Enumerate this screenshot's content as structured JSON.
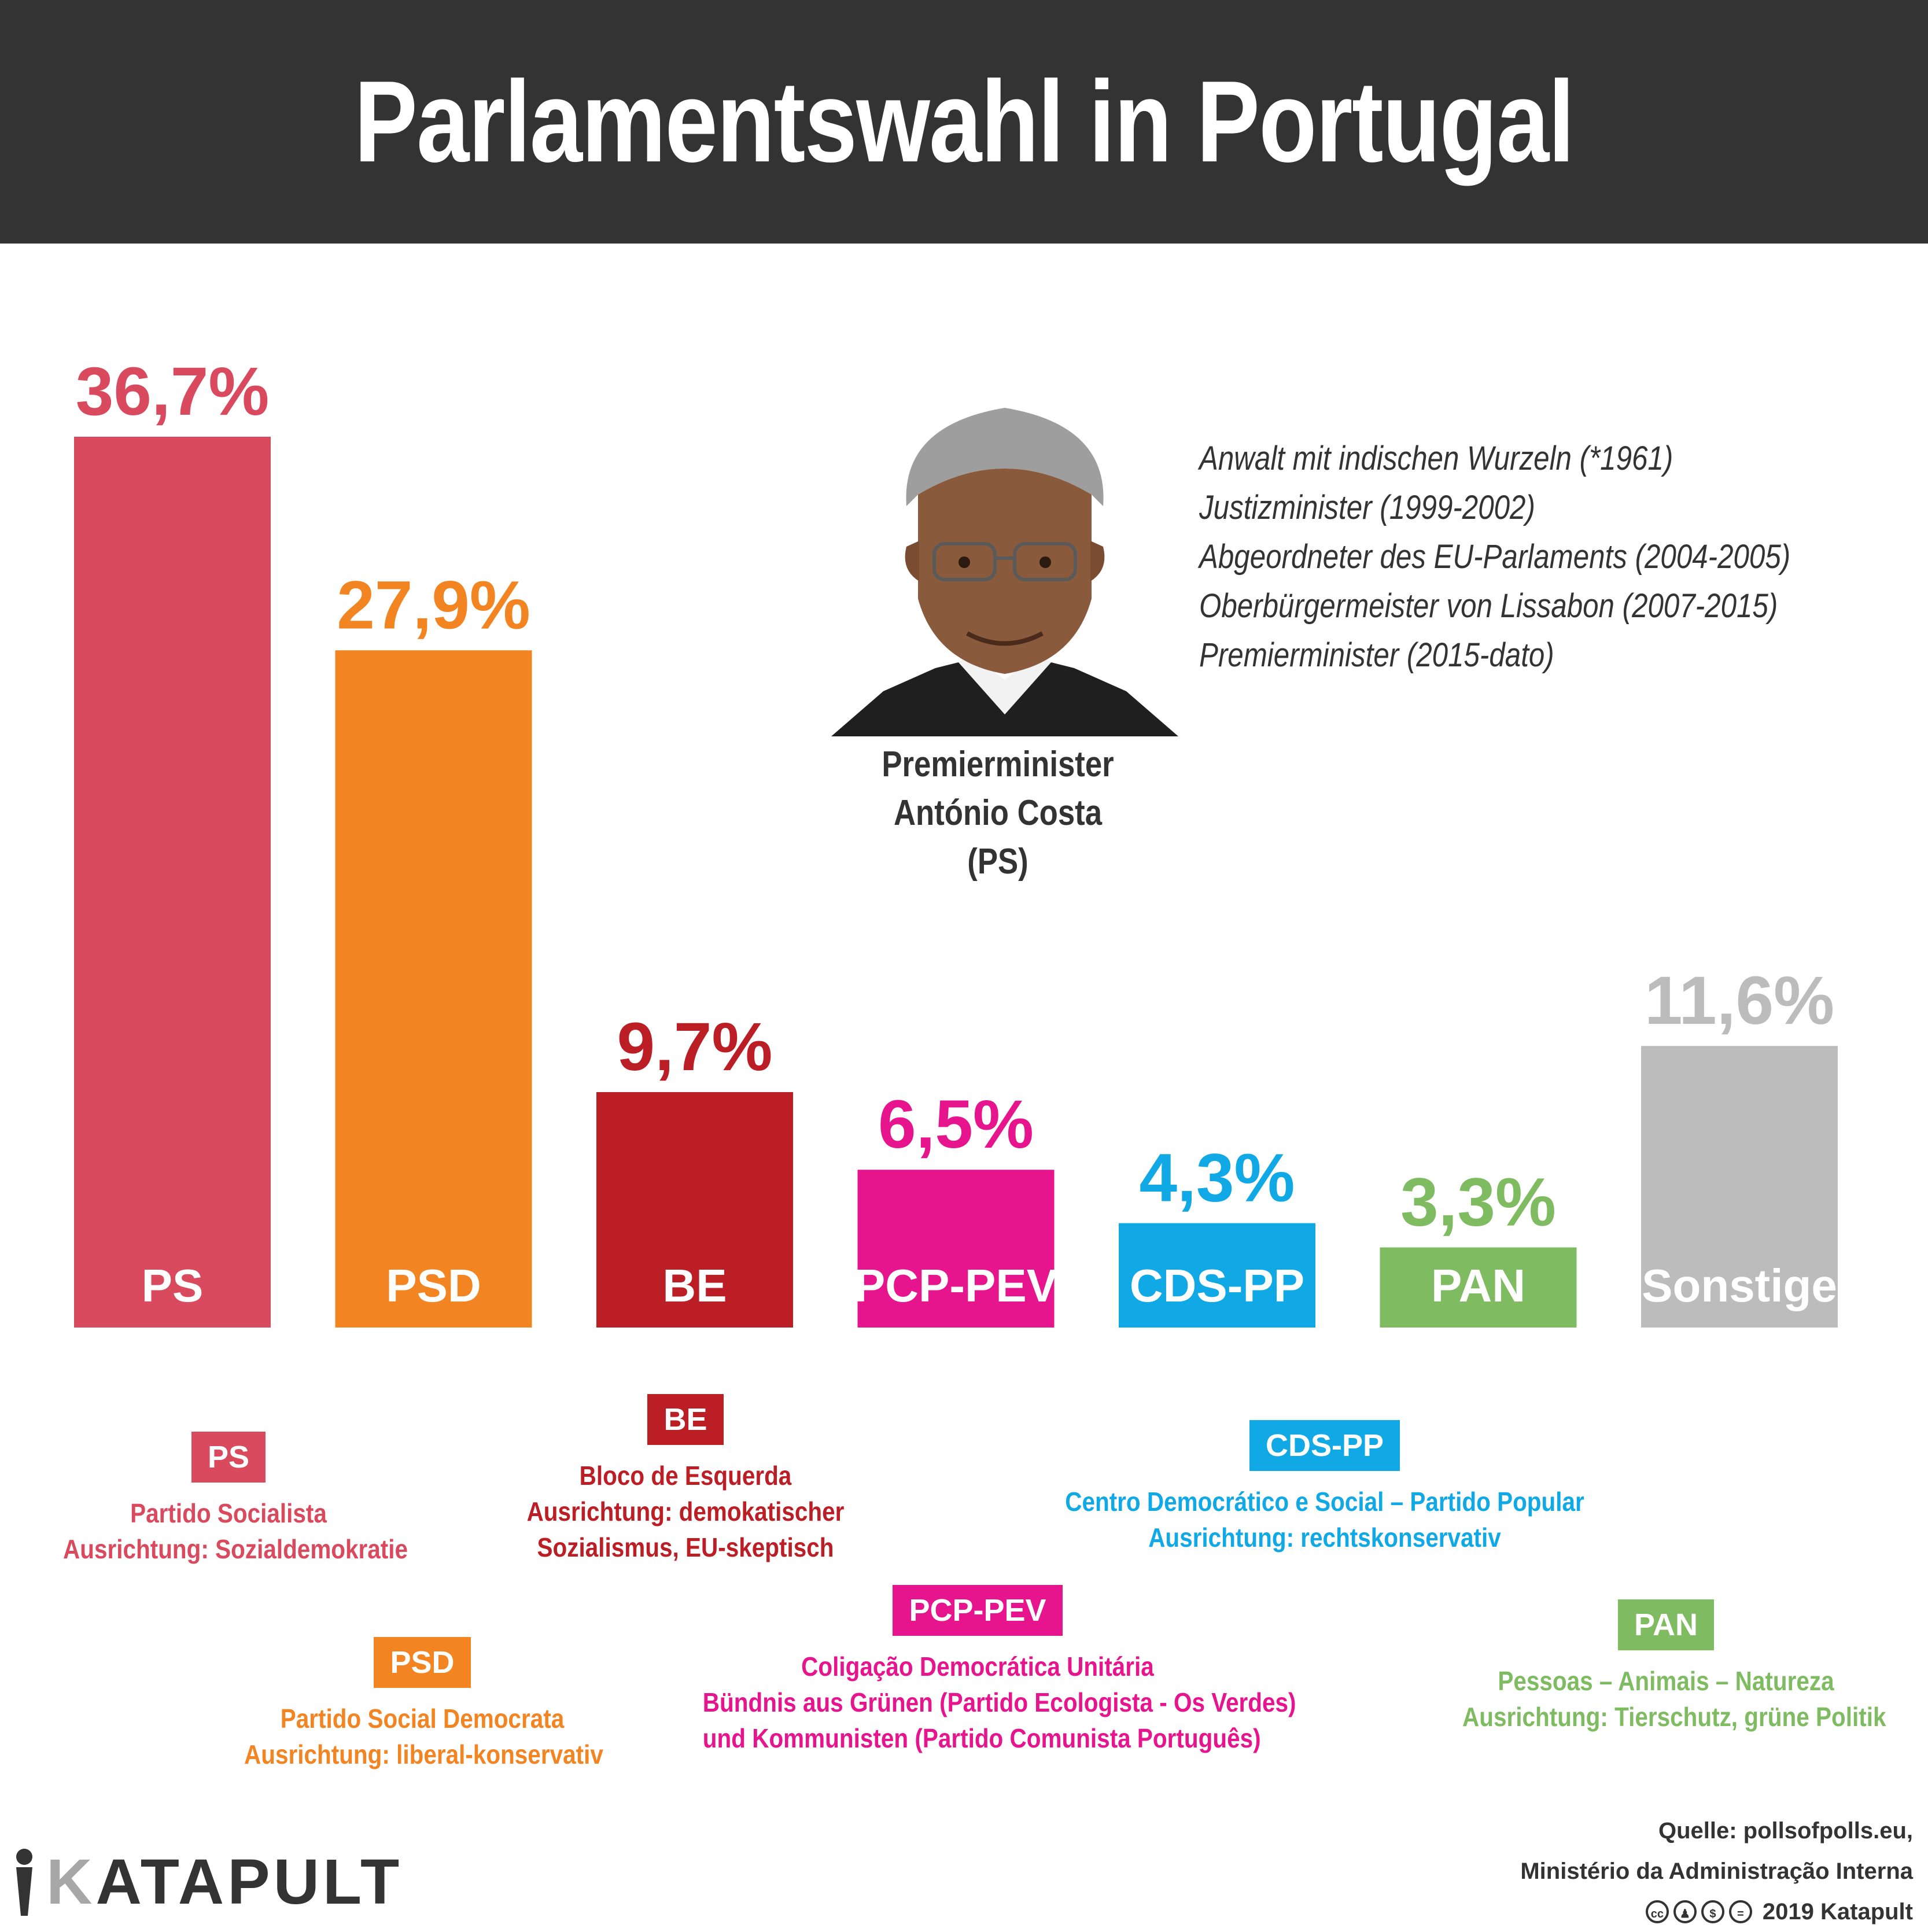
{
  "title": "Parlamentswahl in Portugal",
  "chart_data": {
    "type": "bar",
    "categories": [
      "PS",
      "PSD",
      "BE",
      "PCP-PEV",
      "CDS-PP",
      "PAN",
      "Sonstige"
    ],
    "values": [
      36.7,
      27.9,
      9.7,
      6.5,
      4.3,
      3.3,
      11.6
    ],
    "value_labels": [
      "36,7%",
      "27,9%",
      "9,7%",
      "6,5%",
      "4,3%",
      "3,3%",
      "11,6%"
    ],
    "colors": [
      "#d94a5f",
      "#f28422",
      "#bc1e26",
      "#e6158e",
      "#10a8e5",
      "#7fbb61",
      "#bcbcbc"
    ],
    "title": "Parlamentswahl in Portugal",
    "xlabel": "",
    "ylabel": "",
    "ylim": [
      0,
      36.7
    ],
    "grid": false,
    "legend": "none"
  },
  "premier": {
    "caption": [
      "Premierminister",
      "António Costa",
      "(PS)"
    ],
    "bio": [
      "Anwalt mit indischen Wurzeln (*1961)",
      "Justizminister (1999-2002)",
      "Abgeordneter des EU-Parlaments (2004-2005)",
      "Oberbürgermeister von Lissabon (2007-2015)",
      "Premierminister (2015-dato)"
    ]
  },
  "parties": {
    "ps": {
      "badge": "PS",
      "lines": [
        "Partido Socialista",
        "Ausrichtung: Sozialdemokratie"
      ],
      "color": "#d94a5f"
    },
    "psd": {
      "badge": "PSD",
      "lines": [
        "Partido Social Democrata",
        "Ausrichtung: liberal-konservativ"
      ],
      "color": "#f28422"
    },
    "be": {
      "badge": "BE",
      "lines": [
        "Bloco de Esquerda",
        "Ausrichtung: demokatischer",
        "Sozialismus, EU-skeptisch"
      ],
      "color": "#bc1e26"
    },
    "pcp": {
      "badge": "PCP-PEV",
      "lines": [
        "Coligação Democrática Unitária",
        "Bündnis aus Grünen (Partido Ecologista - Os Verdes)",
        "und Kommunisten (Partido Comunista Português)"
      ],
      "color": "#e6158e"
    },
    "cds": {
      "badge": "CDS-PP",
      "lines": [
        "Centro Democrático e Social – Partido Popular",
        "Ausrichtung: rechtskonservativ"
      ],
      "color": "#10a8e5"
    },
    "pan": {
      "badge": "PAN",
      "lines": [
        "Pessoas – Animais – Natureza",
        "Ausrichtung: Tierschutz, grüne Politik"
      ],
      "color": "#7fbb61"
    }
  },
  "source": {
    "lines": [
      "Quelle: pollsofpolls.eu,",
      "Ministério da Administração Interna"
    ],
    "license_icons": [
      "cc-icon",
      "by-icon",
      "nc-icon",
      "nd-icon"
    ],
    "copyright": "2019 Katapult"
  },
  "logo": {
    "text_first": "K",
    "text_rest": "ATAPULT"
  }
}
